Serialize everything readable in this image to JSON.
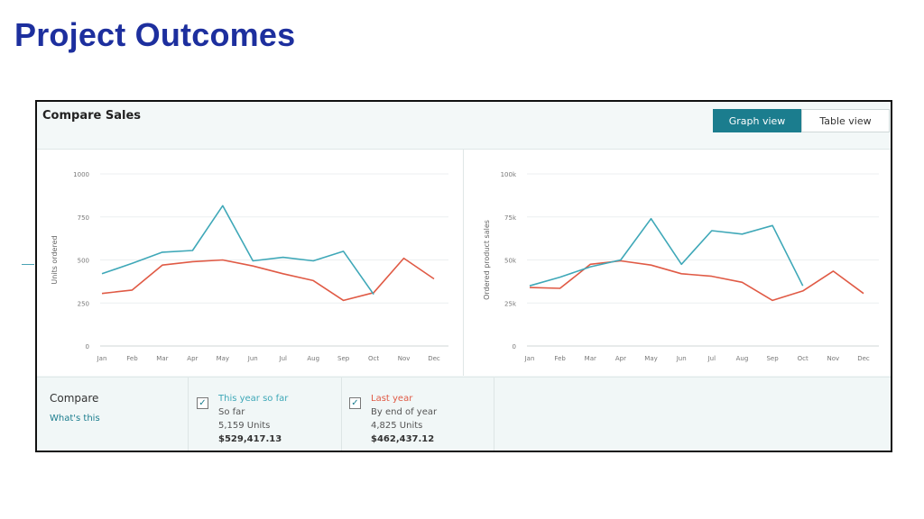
{
  "page": {
    "title": "Project Outcomes"
  },
  "widget": {
    "title": "Compare Sales",
    "view_toggle": {
      "graph_label": "Graph view",
      "table_label": "Table view",
      "selected": "Graph view"
    }
  },
  "colors": {
    "this_year": "#3fa8b8",
    "last_year": "#e05a45",
    "title": "#1d2f9e",
    "accent": "#1b7d8e"
  },
  "chart_data": [
    {
      "type": "line",
      "ylabel": "Units ordered",
      "xlabel": "",
      "categories": [
        "Jan",
        "Feb",
        "Mar",
        "Apr",
        "May",
        "Jun",
        "Jul",
        "Aug",
        "Sep",
        "Oct",
        "Nov",
        "Dec"
      ],
      "yticks": [
        0,
        250,
        500,
        750,
        1000
      ],
      "ytick_labels": [
        "0",
        "250",
        "500",
        "750",
        "1000"
      ],
      "ylim": [
        0,
        1000
      ],
      "grid": true,
      "series": [
        {
          "name": "This year so far",
          "color": "#3fa8b8",
          "values": [
            420,
            480,
            545,
            555,
            815,
            495,
            515,
            495,
            550,
            300,
            null,
            null
          ]
        },
        {
          "name": "Last year",
          "color": "#e05a45",
          "values": [
            305,
            325,
            470,
            490,
            500,
            465,
            420,
            380,
            265,
            310,
            510,
            390
          ]
        }
      ]
    },
    {
      "type": "line",
      "ylabel": "Ordered product sales",
      "xlabel": "",
      "categories": [
        "Jan",
        "Feb",
        "Mar",
        "Apr",
        "May",
        "Jun",
        "Jul",
        "Aug",
        "Sep",
        "Oct",
        "Nov",
        "Dec"
      ],
      "yticks": [
        0,
        25000,
        50000,
        75000,
        100000
      ],
      "ytick_labels": [
        "0",
        "25k",
        "50k",
        "75k",
        "100k"
      ],
      "ylim": [
        0,
        100000
      ],
      "grid": true,
      "series": [
        {
          "name": "This year so far",
          "color": "#3fa8b8",
          "values": [
            35000,
            40000,
            46000,
            50000,
            74000,
            47500,
            67000,
            65000,
            70000,
            35000,
            null,
            null
          ]
        },
        {
          "name": "Last year",
          "color": "#e05a45",
          "values": [
            34000,
            33500,
            47500,
            49500,
            47000,
            42000,
            40500,
            37000,
            26500,
            32000,
            43500,
            30500
          ]
        }
      ]
    }
  ],
  "footer": {
    "compare_label": "Compare",
    "whats_this": "What's this",
    "this_year": {
      "check": "✓",
      "title": "This year so far",
      "sub": "So far",
      "units": "5,159 Units",
      "amount": "$529,417.13"
    },
    "last_year": {
      "check": "✓",
      "title": "Last year",
      "sub": "By end of year",
      "units": "4,825 Units",
      "amount": "$462,437.12"
    }
  }
}
